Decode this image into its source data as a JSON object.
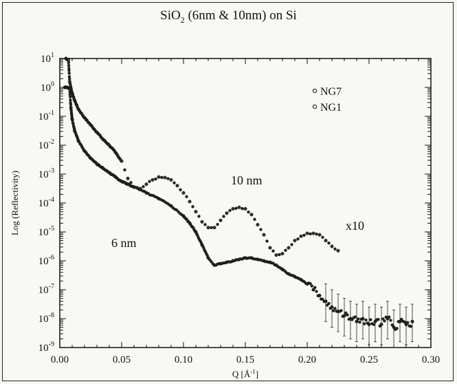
{
  "title_main": "SiO",
  "title_sub": "2",
  "title_rest": " (6nm & 10nm) on Si",
  "chart_data": {
    "type": "scatter",
    "title": "SiO2 (6nm & 10nm) on Si",
    "xlabel_main": "Q [Å",
    "xlabel_sup": "-1",
    "xlabel_end": "]",
    "ylabel": "Log (Reflectivity)",
    "xlim": [
      0,
      0.3
    ],
    "ylim_log10": [
      -9,
      1
    ],
    "x_ticks": [
      "0.00",
      "0.05",
      "0.10",
      "0.15",
      "0.20",
      "0.25",
      "0.30"
    ],
    "y_ticks": [
      {
        "base": "10",
        "exp": "1"
      },
      {
        "base": "10",
        "exp": "0"
      },
      {
        "base": "10",
        "exp": "-1"
      },
      {
        "base": "10",
        "exp": "-2"
      },
      {
        "base": "10",
        "exp": "-3"
      },
      {
        "base": "10",
        "exp": "-4"
      },
      {
        "base": "10",
        "exp": "-5"
      },
      {
        "base": "10",
        "exp": "-6"
      },
      {
        "base": "10",
        "exp": "-7"
      },
      {
        "base": "10",
        "exp": "-8"
      },
      {
        "base": "10",
        "exp": "-9"
      }
    ],
    "legend": [
      "NG7",
      "NG1"
    ],
    "legend_position": "top-right",
    "annotations": {
      "label_10nm": "10 nm",
      "label_6nm": "6 nm",
      "label_x10": "x10"
    },
    "series": [
      {
        "name": "NG1",
        "curve": "10 nm (x10)",
        "points": [
          [
            0.005,
            1.0
          ],
          [
            0.007,
            0.95
          ],
          [
            0.008,
            0.2
          ],
          [
            0.01,
            -0.2
          ],
          [
            0.012,
            -0.45
          ],
          [
            0.015,
            -0.75
          ],
          [
            0.02,
            -1.05
          ],
          [
            0.025,
            -1.3
          ],
          [
            0.03,
            -1.55
          ],
          [
            0.035,
            -1.8
          ],
          [
            0.04,
            -2.0
          ],
          [
            0.045,
            -2.25
          ],
          [
            0.05,
            -2.55
          ],
          [
            0.055,
            -3.15
          ],
          [
            0.06,
            -3.45
          ],
          [
            0.065,
            -3.5
          ],
          [
            0.07,
            -3.35
          ],
          [
            0.075,
            -3.2
          ],
          [
            0.08,
            -3.1
          ],
          [
            0.085,
            -3.12
          ],
          [
            0.09,
            -3.2
          ],
          [
            0.095,
            -3.4
          ],
          [
            0.1,
            -3.65
          ],
          [
            0.105,
            -3.95
          ],
          [
            0.11,
            -4.3
          ],
          [
            0.115,
            -4.65
          ],
          [
            0.12,
            -4.85
          ],
          [
            0.125,
            -4.85
          ],
          [
            0.13,
            -4.6
          ],
          [
            0.135,
            -4.35
          ],
          [
            0.14,
            -4.2
          ],
          [
            0.145,
            -4.15
          ],
          [
            0.15,
            -4.2
          ],
          [
            0.155,
            -4.4
          ],
          [
            0.16,
            -4.75
          ],
          [
            0.165,
            -5.1
          ],
          [
            0.17,
            -5.55
          ],
          [
            0.175,
            -5.8
          ],
          [
            0.18,
            -5.75
          ],
          [
            0.185,
            -5.55
          ],
          [
            0.19,
            -5.3
          ],
          [
            0.195,
            -5.15
          ],
          [
            0.2,
            -5.05
          ],
          [
            0.205,
            -5.05
          ],
          [
            0.21,
            -5.1
          ],
          [
            0.215,
            -5.3
          ],
          [
            0.22,
            -5.5
          ],
          [
            0.225,
            -5.65
          ]
        ]
      },
      {
        "name": "NG7",
        "curve": "6 nm",
        "points": [
          [
            0.004,
            0.0
          ],
          [
            0.006,
            0.0
          ],
          [
            0.008,
            -0.05
          ],
          [
            0.009,
            -0.7
          ],
          [
            0.01,
            -1.1
          ],
          [
            0.012,
            -1.5
          ],
          [
            0.015,
            -1.85
          ],
          [
            0.02,
            -2.2
          ],
          [
            0.025,
            -2.45
          ],
          [
            0.03,
            -2.65
          ],
          [
            0.035,
            -2.8
          ],
          [
            0.04,
            -2.95
          ],
          [
            0.045,
            -3.1
          ],
          [
            0.05,
            -3.25
          ],
          [
            0.055,
            -3.35
          ],
          [
            0.06,
            -3.45
          ],
          [
            0.07,
            -3.65
          ],
          [
            0.08,
            -3.85
          ],
          [
            0.09,
            -4.1
          ],
          [
            0.1,
            -4.45
          ],
          [
            0.105,
            -4.7
          ],
          [
            0.11,
            -5.0
          ],
          [
            0.115,
            -5.45
          ],
          [
            0.12,
            -5.9
          ],
          [
            0.125,
            -6.15
          ],
          [
            0.13,
            -6.1
          ],
          [
            0.135,
            -6.05
          ],
          [
            0.14,
            -6.0
          ],
          [
            0.145,
            -5.95
          ],
          [
            0.15,
            -5.9
          ],
          [
            0.155,
            -5.9
          ],
          [
            0.16,
            -5.95
          ],
          [
            0.165,
            -6.0
          ],
          [
            0.17,
            -6.05
          ],
          [
            0.175,
            -6.15
          ],
          [
            0.18,
            -6.3
          ],
          [
            0.185,
            -6.45
          ],
          [
            0.19,
            -6.55
          ],
          [
            0.195,
            -6.65
          ],
          [
            0.2,
            -6.8
          ],
          [
            0.205,
            -7.0
          ],
          [
            0.21,
            -7.2
          ],
          [
            0.215,
            -7.4
          ],
          [
            0.22,
            -7.6
          ],
          [
            0.225,
            -7.75
          ],
          [
            0.23,
            -7.9
          ],
          [
            0.235,
            -8.0
          ],
          [
            0.24,
            -8.1
          ],
          [
            0.245,
            -8.0
          ],
          [
            0.25,
            -8.2
          ],
          [
            0.255,
            -8.1
          ],
          [
            0.26,
            -8.2
          ],
          [
            0.265,
            -8.0
          ],
          [
            0.27,
            -8.3
          ],
          [
            0.275,
            -8.1
          ],
          [
            0.28,
            -8.2
          ],
          [
            0.285,
            -8.1
          ]
        ]
      }
    ]
  }
}
